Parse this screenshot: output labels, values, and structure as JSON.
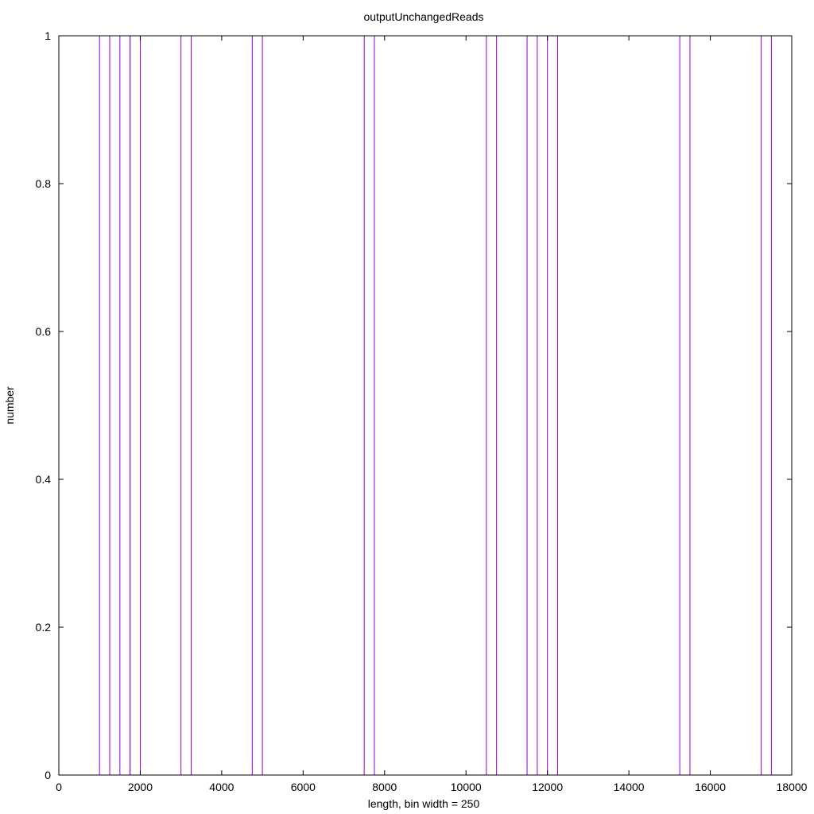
{
  "chart_data": {
    "type": "bar",
    "title": "outputUnchangedReads",
    "xlabel": "length, bin width = 250",
    "ylabel": "number",
    "xlim": [
      0,
      18000
    ],
    "ylim": [
      0,
      1
    ],
    "bin_width": 250,
    "bar_color": "#9400d3",
    "grid": false,
    "x_ticks": [
      "0",
      "2000",
      "4000",
      "6000",
      "8000",
      "10000",
      "12000",
      "14000",
      "16000",
      "18000"
    ],
    "y_ticks": [
      "0",
      "0.2",
      "0.4",
      "0.6",
      "0.8",
      "1"
    ],
    "x_tick_values": [
      0,
      2000,
      4000,
      6000,
      8000,
      10000,
      12000,
      14000,
      16000,
      18000
    ],
    "y_tick_values": [
      0,
      0.2,
      0.4,
      0.6,
      0.8,
      1
    ],
    "bins": [
      {
        "x": 1000,
        "y": 1
      },
      {
        "x": 1500,
        "y": 1
      },
      {
        "x": 1750,
        "y": 1
      },
      {
        "x": 3000,
        "y": 1
      },
      {
        "x": 4750,
        "y": 1
      },
      {
        "x": 7500,
        "y": 1
      },
      {
        "x": 10500,
        "y": 1
      },
      {
        "x": 11500,
        "y": 1
      },
      {
        "x": 12000,
        "y": 1
      },
      {
        "x": 15250,
        "y": 1
      },
      {
        "x": 17250,
        "y": 1
      }
    ]
  }
}
